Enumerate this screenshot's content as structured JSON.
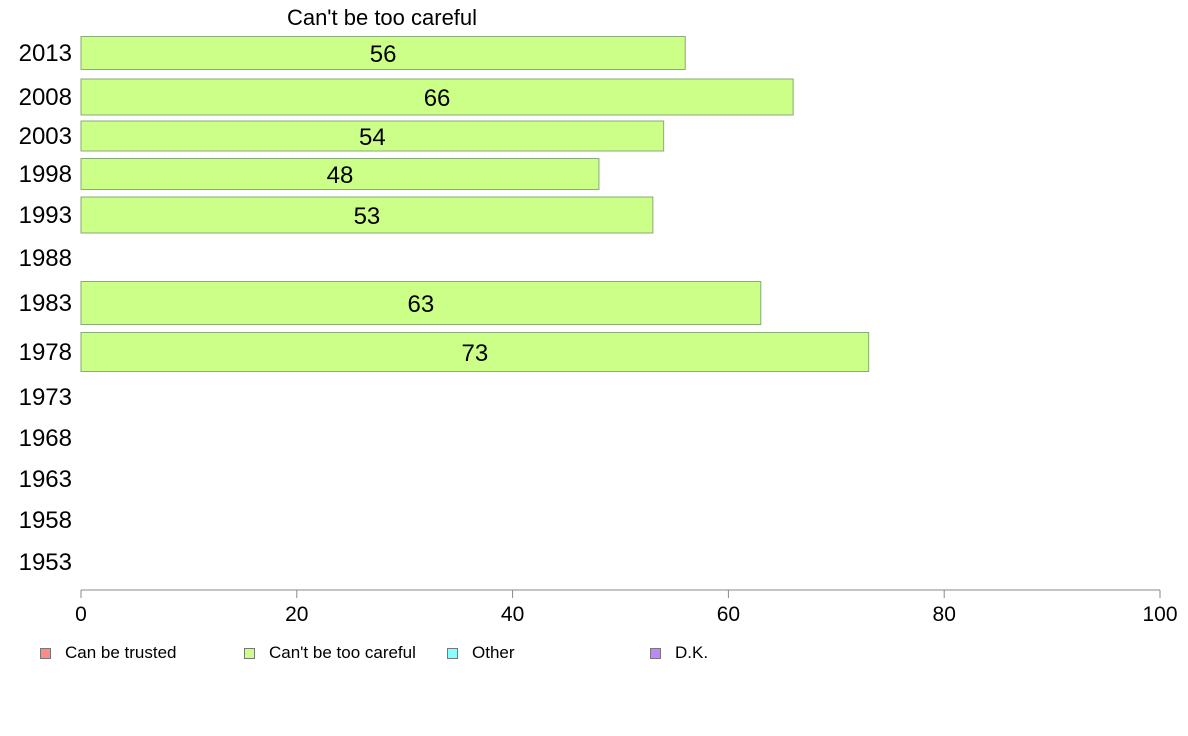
{
  "chart_data": {
    "type": "bar",
    "orientation": "horizontal",
    "title": "Can't be too careful",
    "categories": [
      "2013",
      "2008",
      "2003",
      "1998",
      "1993",
      "1988",
      "1983",
      "1978",
      "1973",
      "1968",
      "1963",
      "1958",
      "1953"
    ],
    "series": [
      {
        "name": "Can't be too careful",
        "color": "#ccff88",
        "values": [
          56,
          66,
          54,
          48,
          53,
          null,
          63,
          73,
          null,
          null,
          null,
          null,
          null
        ]
      }
    ],
    "xlim": [
      0,
      100
    ],
    "xticks": [
      "0",
      "20",
      "40",
      "60",
      "80",
      "100"
    ],
    "grid": false,
    "legend_position": "bottom",
    "legend": [
      {
        "label": "Can be trusted",
        "color": "#ff8888"
      },
      {
        "label": "Can't be too careful",
        "color": "#ccff88"
      },
      {
        "label": "Other",
        "color": "#88ffff"
      },
      {
        "label": "D.K.",
        "color": "#bb88ff"
      }
    ]
  }
}
